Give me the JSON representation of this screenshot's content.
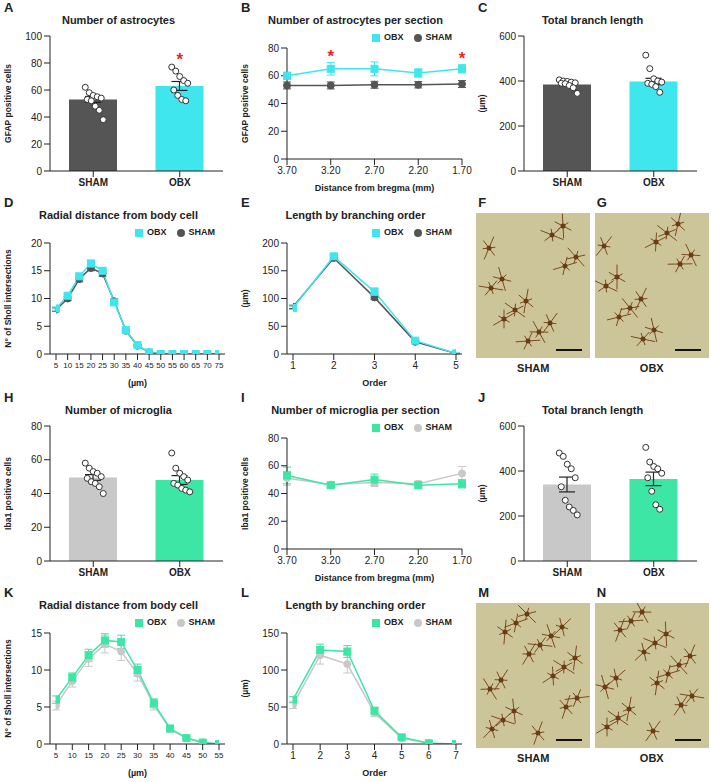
{
  "chart_data": [
    {
      "panel": "A",
      "type": "bar",
      "title": "Number of astrocytes",
      "y_label": "GFAP positive cells",
      "categories": [
        "SHAM",
        "OBX"
      ],
      "values": [
        53,
        63
      ],
      "errors": [
        2.2,
        3.3
      ],
      "colors": [
        "#555555",
        "#3fe6ee"
      ],
      "points": [
        [
          62,
          58,
          56,
          55,
          54,
          53,
          52,
          48,
          45,
          38
        ],
        [
          77,
          74,
          70,
          67,
          65,
          60,
          56,
          53,
          52
        ]
      ],
      "ylim": [
        0,
        100
      ],
      "yticks": [
        0,
        20,
        40,
        60,
        80,
        100
      ],
      "annotations": [
        {
          "text": "*",
          "x": "OBX",
          "y": 83,
          "color": "#e8271e"
        }
      ]
    },
    {
      "panel": "B",
      "type": "line",
      "title": "Number of astrocytes per section",
      "x_label": "Distance from bregma (mm)",
      "y_label": "GFAP positive cells",
      "categories": [
        "3.70",
        "3.20",
        "2.70",
        "2.20",
        "1.70"
      ],
      "series": [
        {
          "name": "SHAM",
          "color": "#555555",
          "marker": "circle",
          "values": [
            53,
            53,
            53.5,
            53.5,
            54
          ],
          "errors": [
            2.5,
            2.5,
            2.5,
            2.3,
            2.5
          ]
        },
        {
          "name": "OBX",
          "color": "#3fe6ee",
          "marker": "square",
          "values": [
            60,
            65,
            65,
            62,
            65
          ],
          "errors": [
            2.5,
            4.5,
            5,
            3,
            3
          ]
        }
      ],
      "ylim": [
        0,
        80
      ],
      "yticks": [
        0,
        20,
        40,
        60,
        80
      ],
      "legend": "top right",
      "annotations": [
        {
          "text": "*",
          "x": "3.20",
          "y": 74,
          "color": "#e8271e"
        },
        {
          "text": "*",
          "x": "1.70",
          "y": 73,
          "color": "#e8271e"
        }
      ]
    },
    {
      "panel": "C",
      "type": "bar",
      "title": "Total branch length",
      "y_label": "(µm)",
      "categories": [
        "SHAM",
        "OBX"
      ],
      "values": [
        385,
        398
      ],
      "errors": [
        6,
        14
      ],
      "colors": [
        "#555555",
        "#3fe6ee"
      ],
      "points": [
        [
          405,
          400,
          398,
          395,
          392,
          390,
          388,
          380,
          370,
          345
        ],
        [
          515,
          455,
          410,
          400,
          395,
          390,
          385,
          375,
          350
        ]
      ],
      "ylim": [
        0,
        600
      ],
      "yticks": [
        0,
        200,
        400,
        600
      ]
    },
    {
      "panel": "D",
      "type": "line",
      "title": "Radial distance from body cell",
      "x_label": "(µm)",
      "y_label": "N° of Sholl intersections",
      "x": [
        5,
        10,
        15,
        20,
        25,
        30,
        35,
        40,
        45,
        50,
        55,
        60,
        65,
        70,
        75
      ],
      "series": [
        {
          "name": "SHAM",
          "color": "#555555",
          "marker": "circle",
          "values": [
            8,
            10,
            13.5,
            15.5,
            14.5,
            9.5,
            4.2,
            1.5,
            0.3,
            0,
            0,
            0,
            0,
            0,
            0
          ],
          "errors": [
            0.3,
            0.4,
            0.5,
            0.5,
            0.5,
            0.4,
            0.3,
            0.2,
            0.1,
            0,
            0,
            0,
            0,
            0,
            0
          ]
        },
        {
          "name": "OBX",
          "color": "#3fe6ee",
          "marker": "square",
          "values": [
            8.2,
            10.5,
            14,
            16.3,
            15,
            9.3,
            4.3,
            1.6,
            0.3,
            0,
            0,
            0,
            0,
            0,
            0
          ],
          "errors": [
            0.3,
            0.4,
            0.5,
            0.6,
            0.5,
            0.4,
            0.3,
            0.2,
            0.1,
            0,
            0,
            0,
            0,
            0,
            0
          ]
        }
      ],
      "xlim": [
        5,
        75
      ],
      "xticks": [
        5,
        10,
        15,
        20,
        25,
        30,
        35,
        40,
        45,
        50,
        55,
        60,
        65,
        70,
        75
      ],
      "ylim": [
        0,
        20
      ],
      "yticks": [
        0,
        5,
        10,
        15,
        20
      ],
      "legend": "top right"
    },
    {
      "panel": "E",
      "type": "line",
      "title": "Length by branching order",
      "x_label": "Order",
      "y_label": "(µm)",
      "x": [
        1,
        2,
        3,
        4,
        5
      ],
      "series": [
        {
          "name": "SHAM",
          "color": "#555555",
          "marker": "circle",
          "values": [
            85,
            173,
            102,
            22,
            1
          ],
          "errors": [
            3,
            4,
            4,
            2,
            0.5
          ]
        },
        {
          "name": "OBX",
          "color": "#3fe6ee",
          "marker": "square",
          "values": [
            83,
            176,
            112,
            24,
            1
          ],
          "errors": [
            3,
            5,
            7,
            3,
            0.5
          ]
        }
      ],
      "xlim": [
        1,
        5
      ],
      "xticks": [
        1,
        2,
        3,
        4,
        5
      ],
      "ylim": [
        0,
        200
      ],
      "yticks": [
        0,
        50,
        100,
        150,
        200
      ],
      "legend": "top right"
    },
    {
      "panel": "F",
      "type": "image",
      "label": "SHAM"
    },
    {
      "panel": "G",
      "type": "image",
      "label": "OBX"
    },
    {
      "panel": "H",
      "type": "bar",
      "title": "Number of microglia",
      "y_label": "Iba1 positive cells",
      "categories": [
        "SHAM",
        "OBX"
      ],
      "values": [
        49.5,
        48
      ],
      "errors": [
        1.7,
        2.6
      ],
      "colors": [
        "#c8c8c8",
        "#3ee6a6"
      ],
      "points": [
        [
          58,
          55,
          53,
          52,
          50,
          49,
          47,
          46,
          44,
          40
        ],
        [
          64,
          55,
          52,
          50,
          48,
          46,
          45,
          43,
          42,
          41
        ]
      ],
      "ylim": [
        0,
        80
      ],
      "yticks": [
        0,
        20,
        40,
        60,
        80
      ]
    },
    {
      "panel": "I",
      "type": "line",
      "title": "Number of microglia per section",
      "x_label": "Distance from bregma (mm)",
      "y_label": "Iba1 positive cells",
      "categories": [
        "3.70",
        "3.20",
        "2.70",
        "2.20",
        "1.70"
      ],
      "series": [
        {
          "name": "SHAM",
          "color": "#c8c8c8",
          "marker": "circle",
          "values": [
            51,
            46.5,
            48,
            47,
            54.5
          ],
          "errors": [
            5,
            1.5,
            3,
            2,
            5
          ]
        },
        {
          "name": "OBX",
          "color": "#3ee6a6",
          "marker": "square",
          "values": [
            53,
            46,
            50,
            46,
            47
          ],
          "errors": [
            6,
            1.5,
            4,
            2,
            3
          ]
        }
      ],
      "ylim": [
        0,
        80
      ],
      "yticks": [
        0,
        20,
        40,
        60,
        80
      ],
      "legend": "top right"
    },
    {
      "panel": "J",
      "type": "bar",
      "title": "Total branch length",
      "y_label": "(µm)",
      "categories": [
        "SHAM",
        "OBX"
      ],
      "values": [
        340,
        365
      ],
      "errors": [
        33,
        30
      ],
      "colors": [
        "#c8c8c8",
        "#3ee6a6"
      ],
      "points": [
        [
          480,
          465,
          430,
          410,
          370,
          330,
          270,
          240,
          225,
          205
        ],
        [
          505,
          440,
          420,
          410,
          390,
          370,
          310,
          250,
          230
        ]
      ],
      "ylim": [
        0,
        600
      ],
      "yticks": [
        0,
        200,
        400,
        600
      ]
    },
    {
      "panel": "K",
      "type": "line",
      "title": "Radial distance from body cell",
      "x_label": "(µm)",
      "y_label": "N° of Sholl intersections",
      "x": [
        5,
        10,
        15,
        20,
        25,
        30,
        35,
        40,
        45,
        50,
        55
      ],
      "series": [
        {
          "name": "SHAM",
          "color": "#c8c8c8",
          "marker": "circle",
          "values": [
            5.2,
            8.5,
            11.5,
            13.5,
            12.5,
            9.5,
            5.3,
            2,
            0.8,
            0.2,
            0
          ],
          "errors": [
            0.6,
            0.8,
            1,
            1.2,
            1.2,
            1,
            0.7,
            0.4,
            0.2,
            0.1,
            0
          ]
        },
        {
          "name": "OBX",
          "color": "#3ee6a6",
          "marker": "square",
          "values": [
            6,
            9,
            12,
            14,
            13.8,
            10,
            5.5,
            2.1,
            0.8,
            0.2,
            0
          ],
          "errors": [
            0.5,
            0.6,
            0.8,
            0.9,
            0.9,
            0.8,
            0.6,
            0.3,
            0.2,
            0.1,
            0
          ]
        }
      ],
      "xlim": [
        5,
        55
      ],
      "xticks": [
        5,
        10,
        15,
        20,
        25,
        30,
        35,
        40,
        45,
        50,
        55
      ],
      "ylim": [
        0,
        15
      ],
      "yticks": [
        0,
        5,
        10,
        15
      ],
      "legend": "top right"
    },
    {
      "panel": "L",
      "type": "line",
      "title": "Length by branching order",
      "x_label": "Order",
      "y_label": "(µm)",
      "x": [
        1,
        2,
        3,
        4,
        5,
        6,
        7
      ],
      "series": [
        {
          "name": "SHAM",
          "color": "#c8c8c8",
          "marker": "circle",
          "values": [
            53,
            120,
            108,
            42,
            8,
            1,
            0
          ],
          "errors": [
            5,
            12,
            12,
            5,
            2,
            0.5,
            0
          ]
        },
        {
          "name": "OBX",
          "color": "#3ee6a6",
          "marker": "square",
          "values": [
            60,
            127,
            125,
            45,
            9,
            1,
            0
          ],
          "errors": [
            4,
            8,
            8,
            4,
            2,
            0.5,
            0
          ]
        }
      ],
      "xlim": [
        1,
        7
      ],
      "xticks": [
        1,
        2,
        3,
        4,
        5,
        6,
        7
      ],
      "ylim": [
        0,
        150
      ],
      "yticks": [
        0,
        50,
        100,
        150
      ],
      "legend": "top right"
    },
    {
      "panel": "M",
      "type": "image",
      "label": "SHAM"
    },
    {
      "panel": "N",
      "type": "image",
      "label": "OBX"
    }
  ]
}
